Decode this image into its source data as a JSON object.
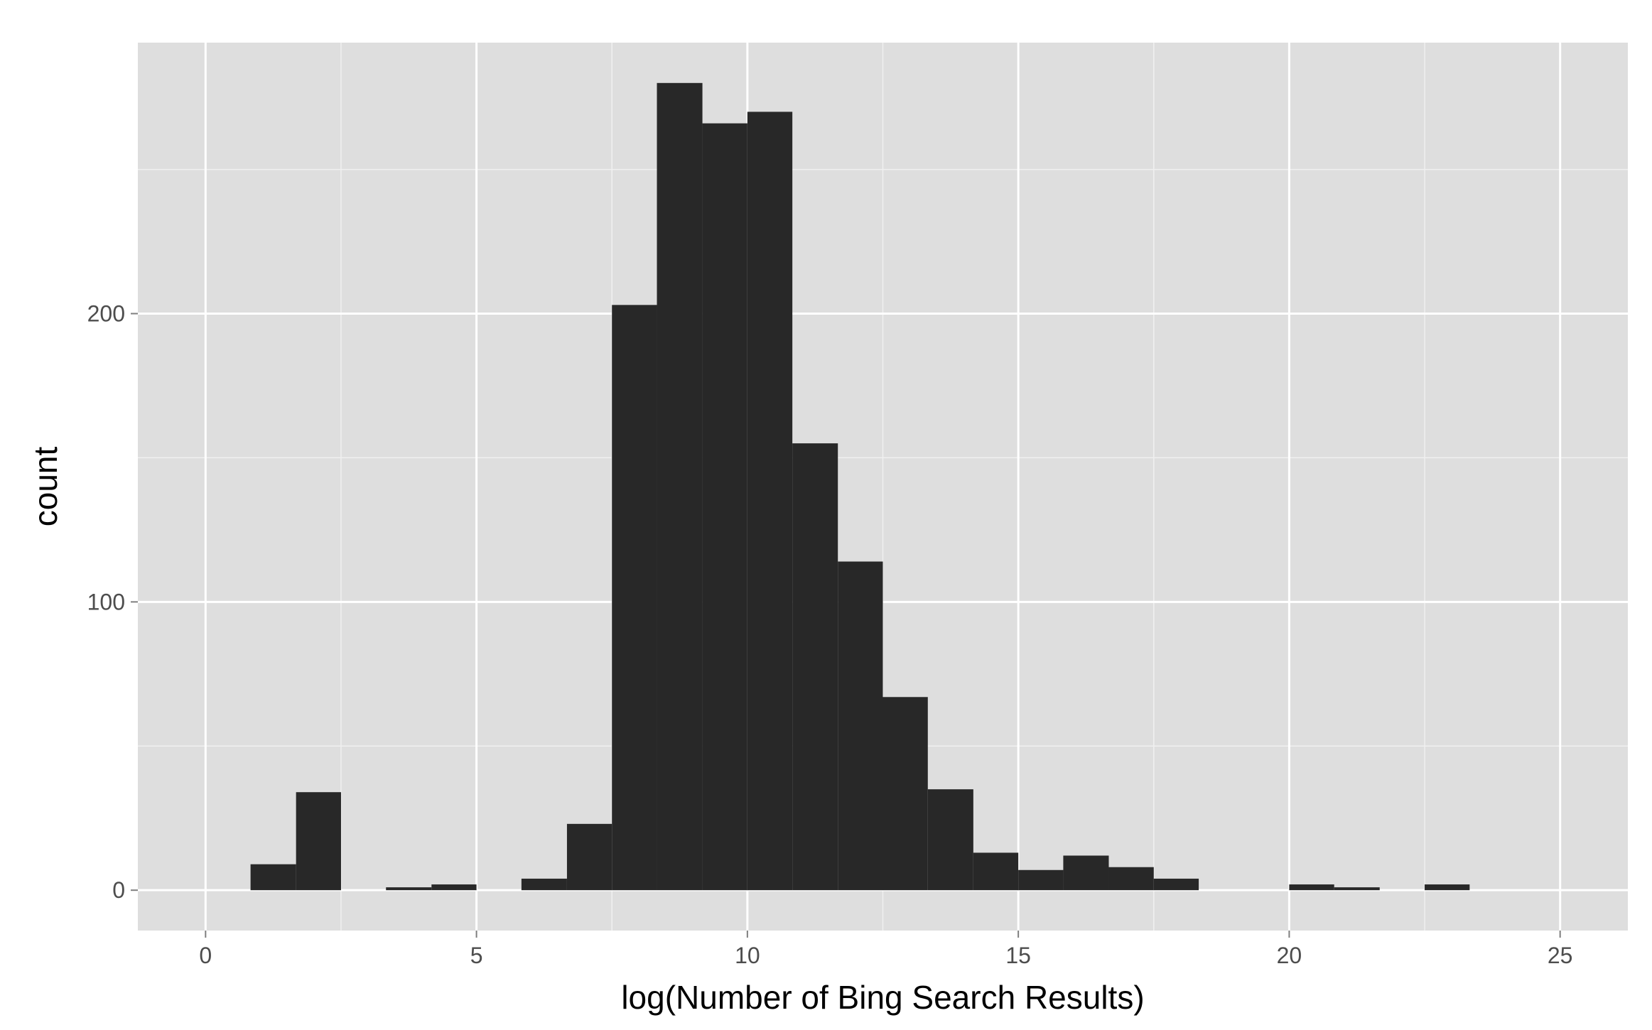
{
  "chart_data": {
    "type": "bar",
    "subtype": "histogram",
    "title": "",
    "xlabel": "log(Number of Bing Search Results)",
    "ylabel": "count",
    "xlim": [
      -1.25,
      26.25
    ],
    "ylim": [
      -14,
      294
    ],
    "x_ticks": [
      0,
      5,
      10,
      15,
      20,
      25
    ],
    "x_tick_labels": [
      "0",
      "5",
      "10",
      "15",
      "20",
      "25"
    ],
    "y_ticks": [
      0,
      100,
      200
    ],
    "y_tick_labels": [
      "0",
      "100",
      "200"
    ],
    "x_minor_ticks": [
      2.5,
      7.5,
      12.5,
      17.5,
      22.5
    ],
    "y_minor_ticks": [
      50,
      150,
      250
    ],
    "grid": true,
    "bar_color": "#282828",
    "panel_background": "#dedede",
    "grid_color": "#ffffff",
    "bins": [
      {
        "x0": 0.83,
        "x1": 1.67,
        "count": 9
      },
      {
        "x0": 1.67,
        "x1": 2.5,
        "count": 34
      },
      {
        "x0": 2.5,
        "x1": 3.33,
        "count": 0
      },
      {
        "x0": 3.33,
        "x1": 4.17,
        "count": 1
      },
      {
        "x0": 4.17,
        "x1": 5.0,
        "count": 2
      },
      {
        "x0": 5.0,
        "x1": 5.83,
        "count": 0
      },
      {
        "x0": 5.83,
        "x1": 6.67,
        "count": 4
      },
      {
        "x0": 6.67,
        "x1": 7.5,
        "count": 23
      },
      {
        "x0": 7.5,
        "x1": 8.33,
        "count": 203
      },
      {
        "x0": 8.33,
        "x1": 9.17,
        "count": 280
      },
      {
        "x0": 9.17,
        "x1": 10.0,
        "count": 266
      },
      {
        "x0": 10.0,
        "x1": 10.83,
        "count": 270
      },
      {
        "x0": 10.83,
        "x1": 11.67,
        "count": 155
      },
      {
        "x0": 11.67,
        "x1": 12.5,
        "count": 114
      },
      {
        "x0": 12.5,
        "x1": 13.33,
        "count": 67
      },
      {
        "x0": 13.33,
        "x1": 14.17,
        "count": 35
      },
      {
        "x0": 14.17,
        "x1": 15.0,
        "count": 13
      },
      {
        "x0": 15.0,
        "x1": 15.83,
        "count": 7
      },
      {
        "x0": 15.83,
        "x1": 16.67,
        "count": 12
      },
      {
        "x0": 16.67,
        "x1": 17.5,
        "count": 8
      },
      {
        "x0": 17.5,
        "x1": 18.33,
        "count": 4
      },
      {
        "x0": 18.33,
        "x1": 19.17,
        "count": 0
      },
      {
        "x0": 19.17,
        "x1": 20.0,
        "count": 0
      },
      {
        "x0": 20.0,
        "x1": 20.83,
        "count": 2
      },
      {
        "x0": 20.83,
        "x1": 21.67,
        "count": 1
      },
      {
        "x0": 21.67,
        "x1": 22.5,
        "count": 0
      },
      {
        "x0": 22.5,
        "x1": 23.33,
        "count": 2
      }
    ]
  }
}
